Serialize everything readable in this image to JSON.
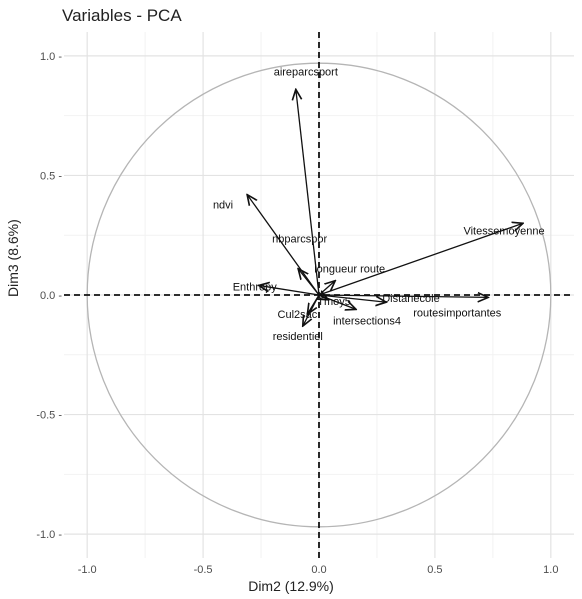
{
  "chart_data": {
    "type": "scatter",
    "title": "Variables - PCA",
    "xlabel": "Dim2 (12.9%)",
    "ylabel": "Dim3 (8.6%)",
    "xlim": [
      -1.1,
      1.1
    ],
    "ylim": [
      -1.1,
      1.1
    ],
    "x_ticks": [
      -1.0,
      -0.5,
      0.0,
      0.5,
      1.0
    ],
    "y_ticks": [
      -1.0,
      -0.5,
      0.0,
      0.5,
      1.0
    ],
    "x_tick_labels": [
      "-1.0",
      "-0.5",
      "0.0",
      "0.5",
      "1.0"
    ],
    "y_tick_labels": [
      "-1.0 -",
      "-0.5 -",
      "0.0 -",
      "0.5 -",
      "1.0 -"
    ],
    "grid": true,
    "correlation_circle": true,
    "variables": [
      {
        "name": "aireparcsport",
        "x": -0.1,
        "y": 0.86
      },
      {
        "name": "ndvi",
        "x": -0.31,
        "y": 0.42
      },
      {
        "name": "nbparcspor",
        "x": -0.09,
        "y": 0.11
      },
      {
        "name": "Enthropy",
        "x": -0.26,
        "y": 0.04
      },
      {
        "name": "Cul2sac",
        "x": -0.05,
        "y": -0.08
      },
      {
        "name": "residentiel",
        "x": -0.07,
        "y": -0.13
      },
      {
        "name": "longueur route",
        "x": 0.07,
        "y": 0.06
      },
      {
        "name": "Tmoy5",
        "x": 0.04,
        "y": -0.02
      },
      {
        "name": "intersections4",
        "x": 0.16,
        "y": -0.06
      },
      {
        "name": "Distanecole",
        "x": 0.29,
        "y": -0.03
      },
      {
        "name": "Vitessemoyenne",
        "x": 0.88,
        "y": 0.3
      },
      {
        "name": "routesimportantes",
        "x": 0.73,
        "y": -0.01
      }
    ]
  }
}
